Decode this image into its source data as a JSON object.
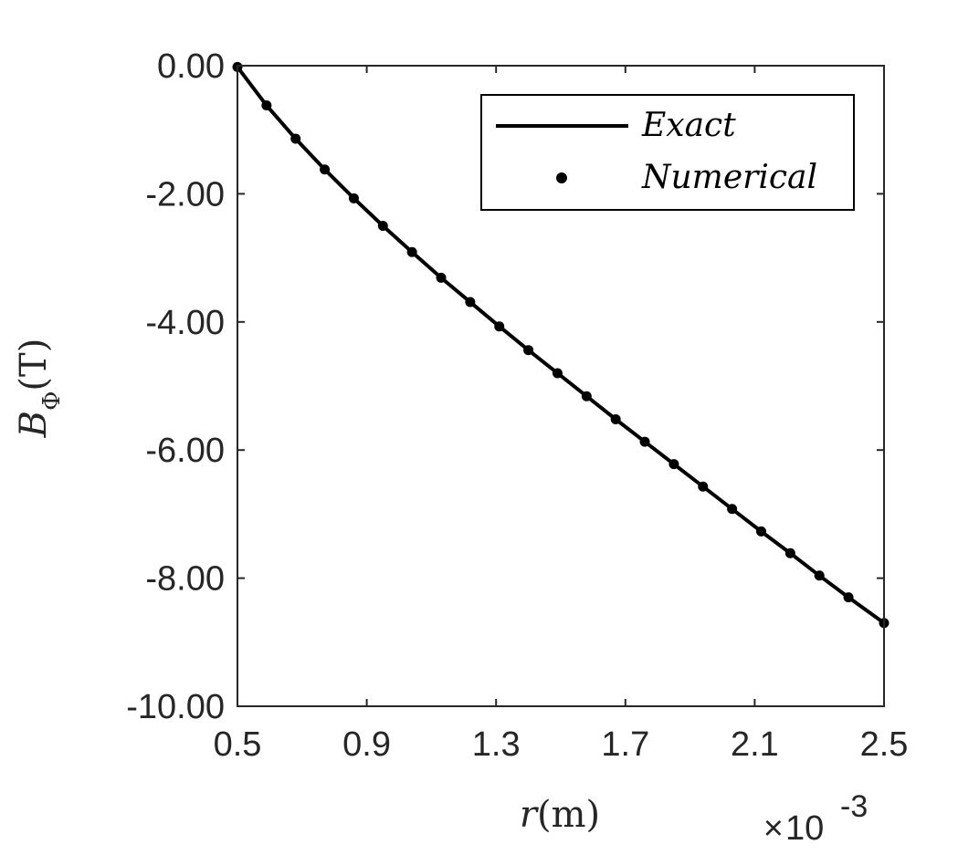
{
  "chart_data": {
    "type": "line",
    "xlabel": "r(m)",
    "ylabel": "B_Φ(T)",
    "ylabel_parts": {
      "main": "B",
      "sub": "Φ",
      "rest": "(T)"
    },
    "xlabel_parts": {
      "var": "r",
      "rest": "(m)"
    },
    "x_multiplier": {
      "times": "×",
      "base": "10",
      "exponent": "-3"
    },
    "xlim": [
      0.5,
      2.5
    ],
    "ylim": [
      -10,
      0
    ],
    "x_ticks": [
      "0.5",
      "0.9",
      "1.3",
      "1.7",
      "2.1",
      "2.5"
    ],
    "y_ticks": [
      "0.00",
      "-2.00",
      "-4.00",
      "-6.00",
      "-8.00",
      "-10.00"
    ],
    "grid": false,
    "legend_position": "top-right",
    "series": [
      {
        "name": "Exact",
        "style": "line",
        "color": "#000000",
        "x": [
          0.5,
          0.59,
          0.68,
          0.77,
          0.86,
          0.95,
          1.04,
          1.13,
          1.22,
          1.31,
          1.4,
          1.49,
          1.58,
          1.67,
          1.76,
          1.85,
          1.94,
          2.03,
          2.12,
          2.21,
          2.3,
          2.39,
          2.5
        ],
        "y": [
          -0.02,
          -0.62,
          -1.14,
          -1.62,
          -2.07,
          -2.5,
          -2.91,
          -3.31,
          -3.69,
          -4.07,
          -4.44,
          -4.8,
          -5.16,
          -5.52,
          -5.87,
          -6.22,
          -6.57,
          -6.92,
          -7.27,
          -7.61,
          -7.96,
          -8.3,
          -8.7
        ]
      },
      {
        "name": "Numerical",
        "style": "markers",
        "color": "#000000",
        "x": [
          0.5,
          0.59,
          0.68,
          0.77,
          0.86,
          0.95,
          1.04,
          1.13,
          1.22,
          1.31,
          1.4,
          1.49,
          1.58,
          1.67,
          1.76,
          1.85,
          1.94,
          2.03,
          2.12,
          2.21,
          2.3,
          2.39,
          2.5
        ],
        "y": [
          -0.02,
          -0.62,
          -1.14,
          -1.62,
          -2.07,
          -2.5,
          -2.91,
          -3.31,
          -3.69,
          -4.07,
          -4.44,
          -4.8,
          -5.16,
          -5.52,
          -5.87,
          -6.22,
          -6.57,
          -6.92,
          -7.27,
          -7.61,
          -7.96,
          -8.3,
          -8.7
        ]
      }
    ]
  }
}
